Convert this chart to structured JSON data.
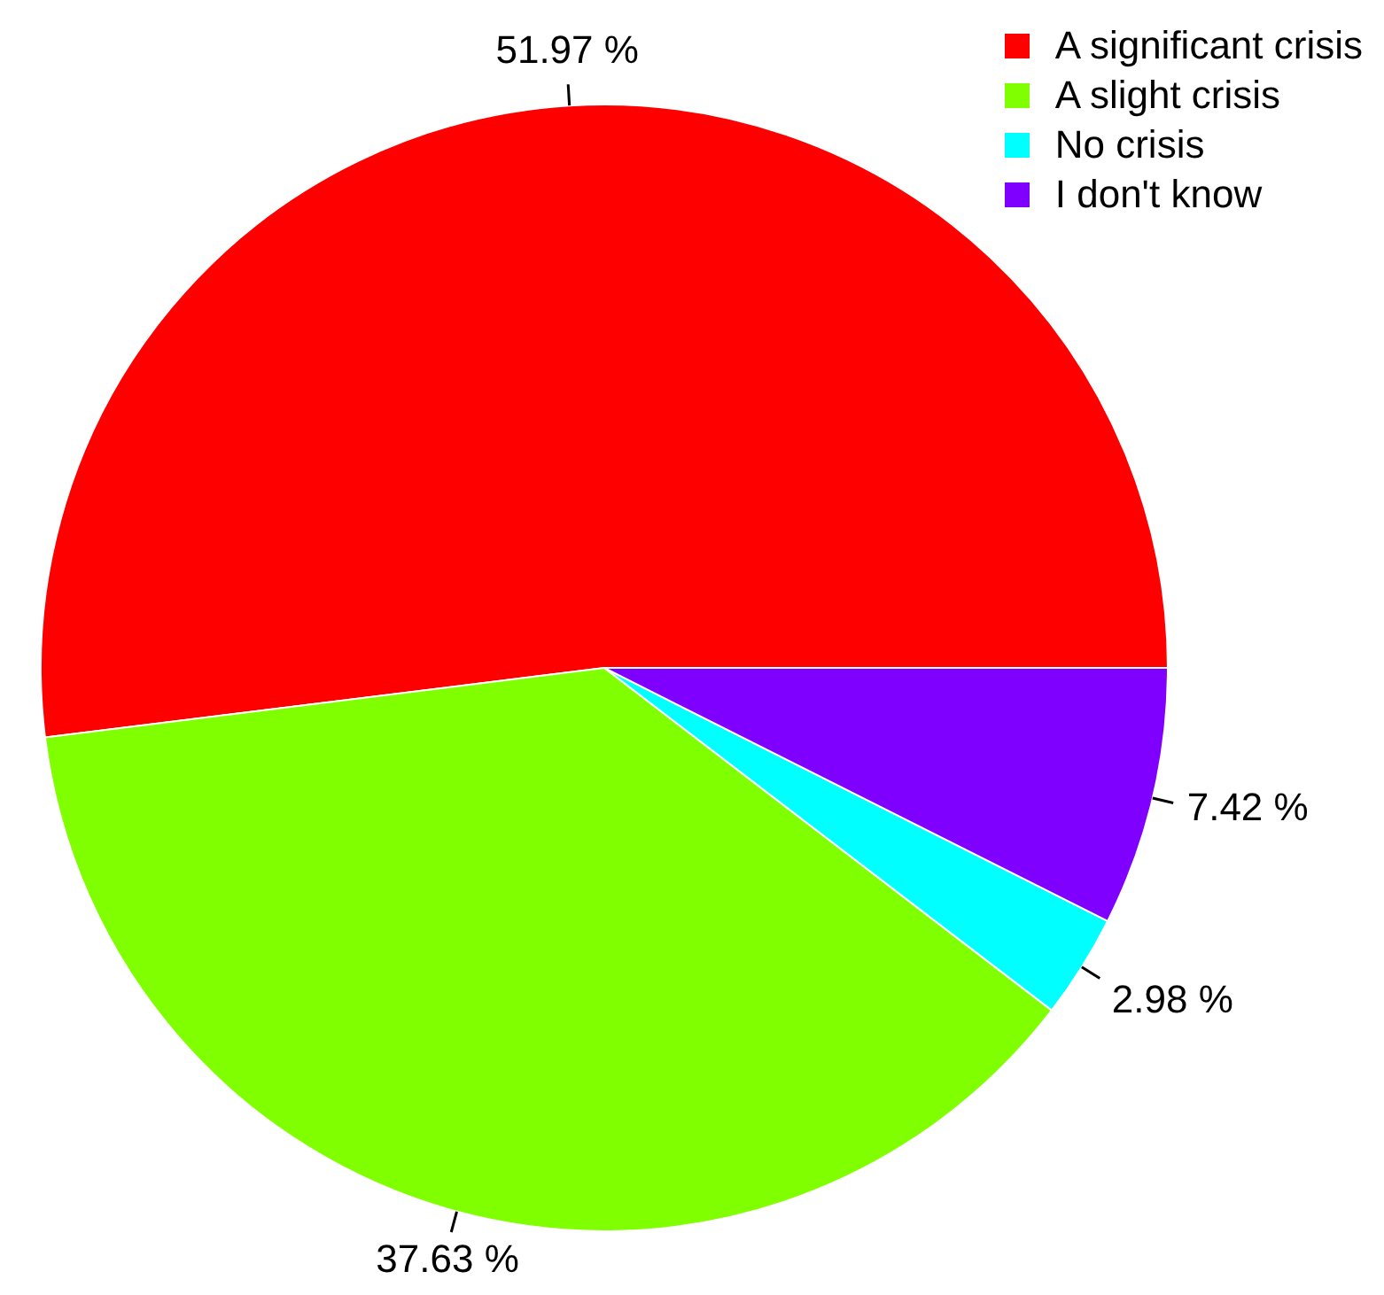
{
  "chart_data": {
    "type": "pie",
    "categories": [
      "A significant crisis",
      "A slight crisis",
      "No crisis",
      "I don't know"
    ],
    "values": [
      51.97,
      37.63,
      2.98,
      7.42
    ],
    "value_labels": [
      "51.97 %",
      "37.63 %",
      "2.98 %",
      "7.42 %"
    ],
    "colors": [
      "#ff0000",
      "#80ff00",
      "#00ffff",
      "#8000ff"
    ],
    "legend": "top right"
  }
}
